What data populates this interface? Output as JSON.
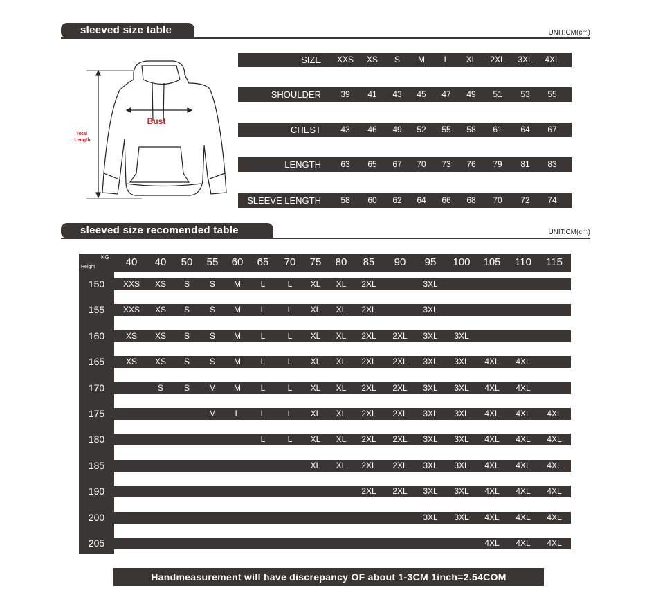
{
  "size_table": {
    "title": "sleeved size table",
    "unit": "UNIT:CM(cm)",
    "diagram": {
      "bust_label": "Bust",
      "length_label_1": "Total",
      "length_label_2": "Length",
      "accent_color": "#c0272d"
    },
    "rows": [
      {
        "label": "SIZE",
        "values": [
          "XXS",
          "XS",
          "S",
          "M",
          "L",
          "XL",
          "2XL",
          "3XL",
          "4XL"
        ]
      },
      {
        "label": "SHOULDER",
        "values": [
          "39",
          "41",
          "43",
          "45",
          "47",
          "49",
          "51",
          "53",
          "55"
        ]
      },
      {
        "label": "CHEST",
        "values": [
          "43",
          "46",
          "49",
          "52",
          "55",
          "58",
          "61",
          "64",
          "67"
        ]
      },
      {
        "label": "LENGTH",
        "values": [
          "63",
          "65",
          "67",
          "70",
          "73",
          "76",
          "79",
          "81",
          "83"
        ]
      },
      {
        "label": "SLEEVE LENGTH",
        "values": [
          "58",
          "60",
          "62",
          "64",
          "66",
          "68",
          "70",
          "72",
          "74"
        ]
      }
    ]
  },
  "recommended": {
    "title": "sleeved size recomended table",
    "unit": "UNIT:CM(cm)",
    "kg_label": "KG",
    "height_label": "Height",
    "weights": [
      "40",
      "40",
      "50",
      "55",
      "60",
      "65",
      "70",
      "75",
      "80",
      "85",
      "90",
      "95",
      "100",
      "105",
      "110",
      "115"
    ],
    "rows": [
      {
        "height": "150",
        "sizes": [
          "XXS",
          "XS",
          "S",
          "S",
          "M",
          "L",
          "L",
          "XL",
          "XL",
          "2XL",
          "",
          "3XL",
          "",
          "",
          "",
          ""
        ]
      },
      {
        "height": "155",
        "sizes": [
          "XXS",
          "XS",
          "S",
          "S",
          "M",
          "L",
          "L",
          "XL",
          "XL",
          "2XL",
          "",
          "3XL",
          "",
          "",
          "",
          ""
        ]
      },
      {
        "height": "160",
        "sizes": [
          "XS",
          "XS",
          "S",
          "S",
          "M",
          "L",
          "L",
          "XL",
          "XL",
          "2XL",
          "2XL",
          "3XL",
          "3XL",
          "",
          "",
          ""
        ]
      },
      {
        "height": "165",
        "sizes": [
          "XS",
          "XS",
          "S",
          "S",
          "M",
          "L",
          "L",
          "XL",
          "XL",
          "2XL",
          "2XL",
          "3XL",
          "3XL",
          "4XL",
          "4XL",
          ""
        ]
      },
      {
        "height": "170",
        "sizes": [
          "",
          "S",
          "S",
          "M",
          "M",
          "L",
          "L",
          "XL",
          "XL",
          "2XL",
          "2XL",
          "3XL",
          "3XL",
          "4XL",
          "4XL",
          ""
        ]
      },
      {
        "height": "175",
        "sizes": [
          "",
          "",
          "",
          "M",
          "L",
          "L",
          "L",
          "XL",
          "XL",
          "2XL",
          "2XL",
          "3XL",
          "3XL",
          "4XL",
          "4XL",
          "4XL"
        ]
      },
      {
        "height": "180",
        "sizes": [
          "",
          "",
          "",
          "",
          "",
          "L",
          "L",
          "XL",
          "XL",
          "2XL",
          "2XL",
          "3XL",
          "3XL",
          "4XL",
          "4XL",
          "4XL"
        ]
      },
      {
        "height": "185",
        "sizes": [
          "",
          "",
          "",
          "",
          "",
          "",
          "",
          "XL",
          "XL",
          "2XL",
          "2XL",
          "3XL",
          "3XL",
          "4XL",
          "4XL",
          "4XL"
        ]
      },
      {
        "height": "190",
        "sizes": [
          "",
          "",
          "",
          "",
          "",
          "",
          "",
          "",
          "",
          "2XL",
          "2XL",
          "3XL",
          "3XL",
          "4XL",
          "4XL",
          "4XL"
        ]
      },
      {
        "height": "200",
        "sizes": [
          "",
          "",
          "",
          "",
          "",
          "",
          "",
          "",
          "",
          "",
          "",
          "3XL",
          "3XL",
          "4XL",
          "4XL",
          "4XL"
        ]
      },
      {
        "height": "205",
        "sizes": [
          "",
          "",
          "",
          "",
          "",
          "",
          "",
          "",
          "",
          "",
          "",
          "",
          "",
          "4XL",
          "4XL",
          "4XL"
        ]
      }
    ]
  },
  "footer": {
    "note": "Handmeasurement will have discrepancy OF about 1-3CM     1inch=2.54COM"
  }
}
